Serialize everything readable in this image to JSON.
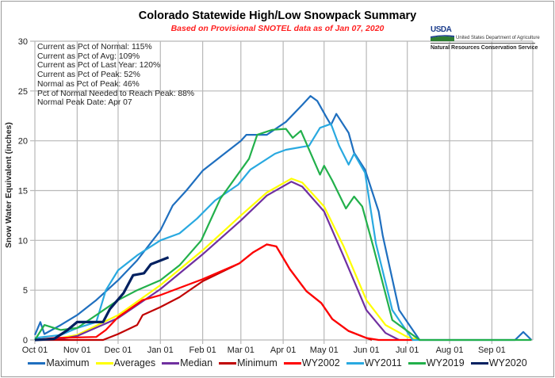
{
  "chart_data": {
    "type": "line",
    "title": "Colorado Statewide High/Low Snowpack Summary",
    "subtitle": "Based on Provisional SNOTEL data as of Jan 07, 2020",
    "ylabel": "Snow Water Equivalent (inches)",
    "xlabel": "",
    "ylim": [
      0,
      30
    ],
    "yticks": [
      0,
      5,
      10,
      15,
      20,
      25,
      30
    ],
    "xticks": [
      "Oct 01",
      "Nov 01",
      "Dec 01",
      "Jan 01",
      "Feb 01",
      "Mar 01",
      "Apr 01",
      "May 01",
      "Jun 01",
      "Jul 01",
      "Aug 01",
      "Sep 01"
    ],
    "grid": true,
    "legend_position": "bottom",
    "stats": [
      "Current  as Pct of Normal: 115%",
      "Current  as Pct of Avg: 109%",
      "Current  as Pct of Last Year: 120%",
      "Current  as Pct of Peak: 52%",
      "Normal  as Pct of Peak: 46%",
      "Pct of Normal Needed  to Reach Peak: 88%",
      "Normal  Peak Date: Apr 07"
    ],
    "series": [
      {
        "name": "Maximum",
        "color": "#1f6fbf",
        "width": 2.2,
        "points": [
          [
            "10-01",
            0.5
          ],
          [
            "10-05",
            1.8
          ],
          [
            "10-08",
            0.6
          ],
          [
            "10-20",
            1.5
          ],
          [
            "11-01",
            2.5
          ],
          [
            "11-15",
            4
          ],
          [
            "12-01",
            6
          ],
          [
            "12-15",
            8
          ],
          [
            "01-01",
            11
          ],
          [
            "01-10",
            13.5
          ],
          [
            "01-20",
            15
          ],
          [
            "02-01",
            17
          ],
          [
            "02-15",
            18.5
          ],
          [
            "03-01",
            20
          ],
          [
            "03-05",
            20.6
          ],
          [
            "03-20",
            20.6
          ],
          [
            "04-03",
            21.9
          ],
          [
            "04-15",
            23.6
          ],
          [
            "04-21",
            24.5
          ],
          [
            "04-26",
            24
          ],
          [
            "05-03",
            22.3
          ],
          [
            "05-06",
            21.6
          ],
          [
            "05-10",
            22.7
          ],
          [
            "05-19",
            20.8
          ],
          [
            "05-23",
            18.8
          ],
          [
            "05-31",
            17.1
          ],
          [
            "06-10",
            12.9
          ],
          [
            "06-13",
            10.5
          ],
          [
            "06-25",
            3
          ],
          [
            "07-10",
            0
          ],
          [
            "09-18",
            0
          ],
          [
            "09-24",
            0.8
          ],
          [
            "09-30",
            0
          ]
        ]
      },
      {
        "name": "Averages",
        "color": "#ffff00",
        "width": 2.2,
        "points": [
          [
            "10-01",
            0
          ],
          [
            "10-20",
            0.2
          ],
          [
            "11-01",
            0.5
          ],
          [
            "12-01",
            2.5
          ],
          [
            "01-01",
            5.5
          ],
          [
            "02-01",
            9
          ],
          [
            "03-01",
            12.5
          ],
          [
            "03-20",
            14.8
          ],
          [
            "04-07",
            16.2
          ],
          [
            "04-15",
            15.8
          ],
          [
            "05-01",
            13.4
          ],
          [
            "05-15",
            9.5
          ],
          [
            "06-01",
            4
          ],
          [
            "06-15",
            1.5
          ],
          [
            "07-01",
            0.3
          ],
          [
            "07-10",
            0
          ]
        ]
      },
      {
        "name": "Median",
        "color": "#7030a0",
        "width": 2.2,
        "points": [
          [
            "10-01",
            0
          ],
          [
            "10-20",
            0.1
          ],
          [
            "11-01",
            0.4
          ],
          [
            "12-01",
            2.2
          ],
          [
            "01-01",
            5.1
          ],
          [
            "02-01",
            8.6
          ],
          [
            "03-01",
            12
          ],
          [
            "03-20",
            14.5
          ],
          [
            "04-07",
            15.9
          ],
          [
            "04-15",
            15.4
          ],
          [
            "05-01",
            12.9
          ],
          [
            "05-15",
            8.5
          ],
          [
            "06-01",
            3
          ],
          [
            "06-15",
            0.7
          ],
          [
            "06-25",
            0
          ]
        ]
      },
      {
        "name": "Minimum",
        "color": "#c00000",
        "width": 2.2,
        "points": [
          [
            "10-01",
            0
          ],
          [
            "11-20",
            0
          ],
          [
            "12-01",
            0.6
          ],
          [
            "12-15",
            1.5
          ],
          [
            "12-19",
            2.5
          ],
          [
            "01-01",
            3.3
          ],
          [
            "01-15",
            4.3
          ],
          [
            "02-01",
            5.9
          ],
          [
            "02-28",
            7.7
          ],
          [
            "03-10",
            8.8
          ],
          [
            "03-20",
            9.6
          ],
          [
            "03-27",
            9.4
          ],
          [
            "04-06",
            7.1
          ],
          [
            "04-18",
            4.9
          ],
          [
            "04-29",
            3.7
          ],
          [
            "05-07",
            2.1
          ],
          [
            "05-19",
            0.9
          ],
          [
            "06-01",
            0.2
          ],
          [
            "06-05",
            0
          ]
        ]
      },
      {
        "name": "WY2002",
        "color": "#ff0000",
        "width": 2.2,
        "points": [
          [
            "10-01",
            0
          ],
          [
            "10-15",
            0.2
          ],
          [
            "11-15",
            0.3
          ],
          [
            "11-22",
            1
          ],
          [
            "12-01",
            2.3
          ],
          [
            "12-19",
            4
          ],
          [
            "01-01",
            4.5
          ],
          [
            "02-01",
            6.1
          ],
          [
            "02-28",
            7.7
          ],
          [
            "03-10",
            8.8
          ],
          [
            "03-20",
            9.6
          ],
          [
            "03-27",
            9.4
          ],
          [
            "04-06",
            7.1
          ],
          [
            "04-18",
            4.9
          ],
          [
            "04-29",
            3.7
          ],
          [
            "05-07",
            2.1
          ],
          [
            "05-19",
            0.9
          ],
          [
            "06-01",
            0.2
          ],
          [
            "06-10",
            0
          ],
          [
            "07-05",
            0
          ]
        ]
      },
      {
        "name": "WY2011",
        "color": "#29a9e0",
        "width": 2.2,
        "points": [
          [
            "10-01",
            0.2
          ],
          [
            "10-20",
            0.5
          ],
          [
            "11-01",
            1.2
          ],
          [
            "11-15",
            1.8
          ],
          [
            "11-22",
            5
          ],
          [
            "12-01",
            7
          ],
          [
            "12-15",
            8.5
          ],
          [
            "01-01",
            10
          ],
          [
            "01-15",
            10.7
          ],
          [
            "01-28",
            12.2
          ],
          [
            "02-10",
            14
          ],
          [
            "02-27",
            15.6
          ],
          [
            "03-08",
            17.1
          ],
          [
            "03-26",
            18.7
          ],
          [
            "04-03",
            19.1
          ],
          [
            "04-20",
            19.5
          ],
          [
            "04-28",
            21.3
          ],
          [
            "05-06",
            21.7
          ],
          [
            "05-12",
            19.5
          ],
          [
            "05-19",
            17.6
          ],
          [
            "05-23",
            18.7
          ],
          [
            "05-31",
            16.8
          ],
          [
            "06-08",
            9.7
          ],
          [
            "06-20",
            3
          ],
          [
            "07-05",
            0
          ],
          [
            "07-10",
            0
          ]
        ]
      },
      {
        "name": "WY2019",
        "color": "#22b04b",
        "width": 2.2,
        "points": [
          [
            "10-01",
            0
          ],
          [
            "10-08",
            1.5
          ],
          [
            "10-20",
            1
          ],
          [
            "11-01",
            1.2
          ],
          [
            "11-15",
            2.5
          ],
          [
            "12-01",
            4
          ],
          [
            "12-15",
            5
          ],
          [
            "01-01",
            6
          ],
          [
            "01-15",
            7.5
          ],
          [
            "01-31",
            10
          ],
          [
            "02-14",
            14.2
          ],
          [
            "03-07",
            18.2
          ],
          [
            "03-13",
            20.6
          ],
          [
            "03-24",
            21.1
          ],
          [
            "04-03",
            21.2
          ],
          [
            "04-08",
            20.3
          ],
          [
            "04-14",
            21
          ],
          [
            "04-28",
            16.6
          ],
          [
            "05-01",
            17.5
          ],
          [
            "05-07",
            16
          ],
          [
            "05-17",
            13.2
          ],
          [
            "05-23",
            14.4
          ],
          [
            "05-29",
            13.4
          ],
          [
            "06-06",
            9.4
          ],
          [
            "06-20",
            2
          ],
          [
            "07-10",
            0
          ],
          [
            "09-30",
            0
          ]
        ]
      },
      {
        "name": "WY2020",
        "color": "#002060",
        "width": 3.2,
        "points": [
          [
            "10-01",
            0
          ],
          [
            "10-15",
            0.1
          ],
          [
            "10-25",
            1
          ],
          [
            "11-01",
            1.8
          ],
          [
            "11-20",
            1.8
          ],
          [
            "11-25",
            3.1
          ],
          [
            "12-05",
            4.7
          ],
          [
            "12-12",
            6.5
          ],
          [
            "12-20",
            6.7
          ],
          [
            "12-25",
            7.6
          ],
          [
            "01-07",
            8.3
          ]
        ]
      }
    ]
  },
  "logo": {
    "usda": "USDA",
    "department": "United States Department of Agriculture",
    "agency": "Natural Resources Conservation Service"
  }
}
